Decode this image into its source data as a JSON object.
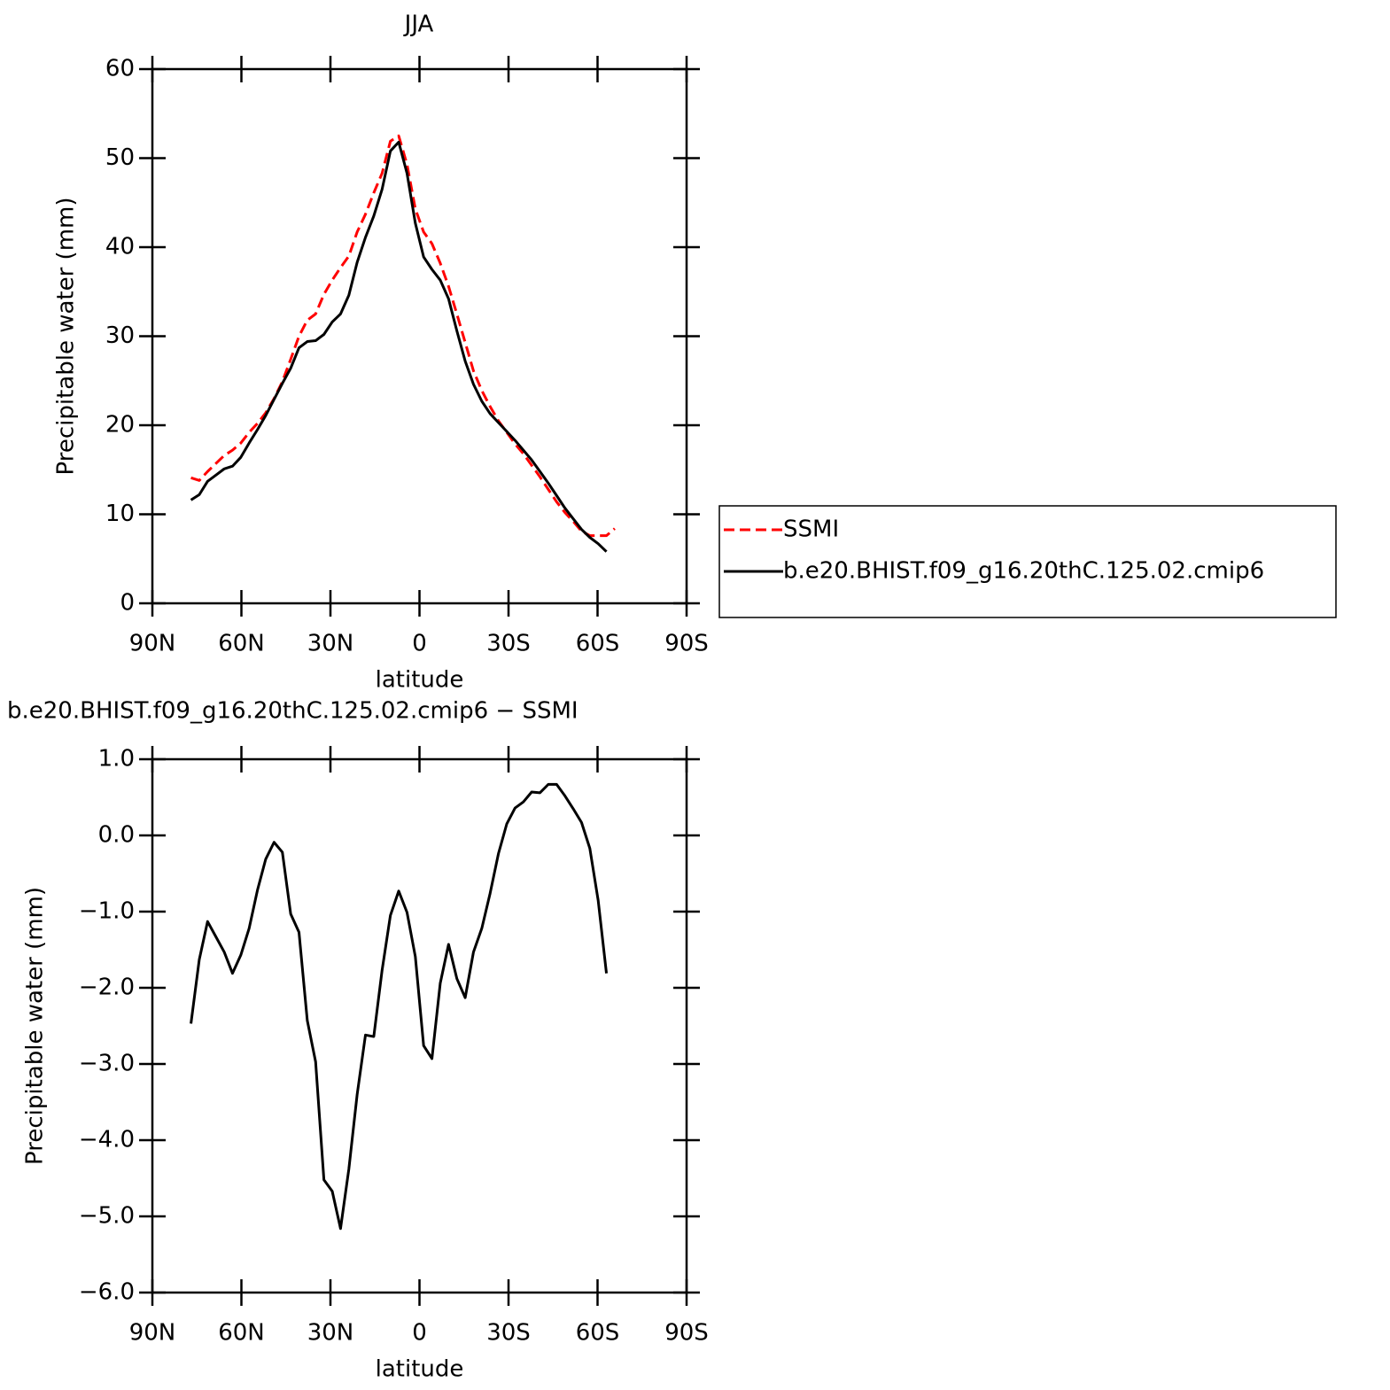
{
  "chart_data": [
    {
      "type": "line",
      "title": "JJA",
      "ylabel": "Precipitable water (mm)",
      "xlabel": "latitude",
      "x": [
        77,
        74.2,
        71.4,
        68.6,
        65.8,
        63,
        60.2,
        57.4,
        54.6,
        51.8,
        49,
        46.2,
        43.4,
        40.6,
        37.8,
        35,
        32.2,
        29.4,
        26.6,
        23.8,
        21,
        18.2,
        15.4,
        12.6,
        9.8,
        7,
        4.2,
        1.4,
        -1.4,
        -4.2,
        -7,
        -9.8,
        -12.6,
        -15.4,
        -18.2,
        -21,
        -23.8,
        -26.6,
        -29.4,
        -32.2,
        -35,
        -37.8,
        -40.6,
        -43.4,
        -46.2,
        -49,
        -51.8,
        -54.6,
        -57.4,
        -60.2,
        -63,
        -65.8
      ],
      "series": [
        {
          "name": "SSMI",
          "color": "#ff0000",
          "line_style": "dashed",
          "values": [
            14.1,
            13.8,
            14.8,
            15.7,
            16.6,
            17.2,
            18.0,
            19.2,
            20.2,
            21.4,
            23.0,
            24.9,
            27.4,
            30.0,
            31.8,
            32.5,
            34.7,
            36.3,
            37.7,
            39.0,
            41.7,
            43.7,
            46.1,
            48.3,
            51.9,
            52.5,
            49.3,
            44.3,
            41.7,
            40.4,
            38.2,
            35.6,
            32.5,
            29.3,
            26.1,
            23.9,
            22.1,
            20.5,
            19.2,
            17.9,
            16.8,
            15.5,
            14.2,
            12.8,
            11.4,
            10.2,
            9.2,
            8.1,
            7.6,
            7.6,
            7.6,
            8.4
          ]
        },
        {
          "name": "b.e20.BHIST.f09_g16.20thC.125.02.cmip6",
          "color": "#000000",
          "line_style": "solid",
          "values": [
            11.6,
            12.2,
            13.7,
            14.4,
            15.1,
            15.4,
            16.4,
            18.0,
            19.5,
            21.1,
            22.9,
            24.7,
            26.4,
            28.7,
            29.4,
            29.5,
            30.2,
            31.6,
            32.5,
            34.6,
            38.3,
            41.1,
            43.5,
            46.5,
            50.8,
            51.8,
            48.3,
            42.7,
            38.9,
            37.5,
            36.3,
            34.2,
            30.6,
            27.2,
            24.6,
            22.7,
            21.3,
            20.3,
            19.3,
            18.3,
            17.2,
            16.1,
            14.8,
            13.5,
            12.1,
            10.7,
            9.5,
            8.3,
            7.4,
            6.7,
            5.8,
            null
          ]
        }
      ],
      "xlim": [
        90,
        -90
      ],
      "xticks": [
        {
          "value": 90,
          "label": "90N"
        },
        {
          "value": 60,
          "label": "60N"
        },
        {
          "value": 30,
          "label": "30N"
        },
        0,
        {
          "value": -30,
          "label": "30S"
        },
        {
          "value": -60,
          "label": "60S"
        },
        {
          "value": -90,
          "label": "90S"
        }
      ],
      "ylim": [
        0,
        60
      ],
      "yticks": [
        0,
        10,
        20,
        30,
        40,
        50,
        60
      ],
      "legend": "right"
    },
    {
      "type": "line",
      "title": "b.e20.BHIST.f09_g16.20thC.125.02.cmip6 − SSMI",
      "ylabel": "Precipitable water (mm)",
      "xlabel": "latitude",
      "x": [
        77,
        74.2,
        71.4,
        68.6,
        65.8,
        63,
        60.2,
        57.4,
        54.6,
        51.8,
        49,
        46.2,
        43.4,
        40.6,
        37.8,
        35,
        32.2,
        29.4,
        26.6,
        23.8,
        21,
        18.2,
        15.4,
        12.6,
        9.8,
        7,
        4.2,
        1.4,
        -1.4,
        -4.2,
        -7,
        -9.8,
        -12.6,
        -15.4,
        -18.2,
        -21,
        -23.8,
        -26.6,
        -29.4,
        -32.2,
        -35,
        -37.8,
        -40.6,
        -43.4,
        -46.2,
        -49,
        -51.8,
        -54.6,
        -57.4,
        -60.2,
        -63
      ],
      "series": [
        {
          "color": "#000000",
          "line_style": "solid",
          "values": [
            -2.47,
            -1.63,
            -1.13,
            -1.33,
            -1.53,
            -1.81,
            -1.57,
            -1.22,
            -0.72,
            -0.31,
            -0.09,
            -0.22,
            -1.03,
            -1.27,
            -2.43,
            -2.97,
            -4.52,
            -4.67,
            -5.16,
            -4.38,
            -3.4,
            -2.62,
            -2.64,
            -1.77,
            -1.05,
            -0.73,
            -1.01,
            -1.59,
            -2.76,
            -2.93,
            -1.94,
            -1.43,
            -1.88,
            -2.13,
            -1.53,
            -1.22,
            -0.76,
            -0.24,
            0.15,
            0.36,
            0.44,
            0.57,
            0.56,
            0.67,
            0.67,
            0.52,
            0.35,
            0.17,
            -0.17,
            -0.85,
            -1.81
          ]
        }
      ],
      "xlim": [
        90,
        -90
      ],
      "xticks": [
        {
          "value": 90,
          "label": "90N"
        },
        {
          "value": 60,
          "label": "60N"
        },
        {
          "value": 30,
          "label": "30N"
        },
        0,
        {
          "value": -30,
          "label": "30S"
        },
        {
          "value": -60,
          "label": "60S"
        },
        {
          "value": -90,
          "label": "90S"
        }
      ],
      "ylim": [
        -6,
        1
      ],
      "yticks": [
        {
          "value": -6,
          "label": "−6.0"
        },
        {
          "value": -5,
          "label": "−5.0"
        },
        {
          "value": -4,
          "label": "−4.0"
        },
        {
          "value": -3,
          "label": "−3.0"
        },
        {
          "value": -2,
          "label": "−2.0"
        },
        {
          "value": -1,
          "label": "−1.0"
        },
        {
          "value": 0,
          "label": "0.0"
        },
        {
          "value": 1,
          "label": "1.0"
        }
      ]
    }
  ]
}
